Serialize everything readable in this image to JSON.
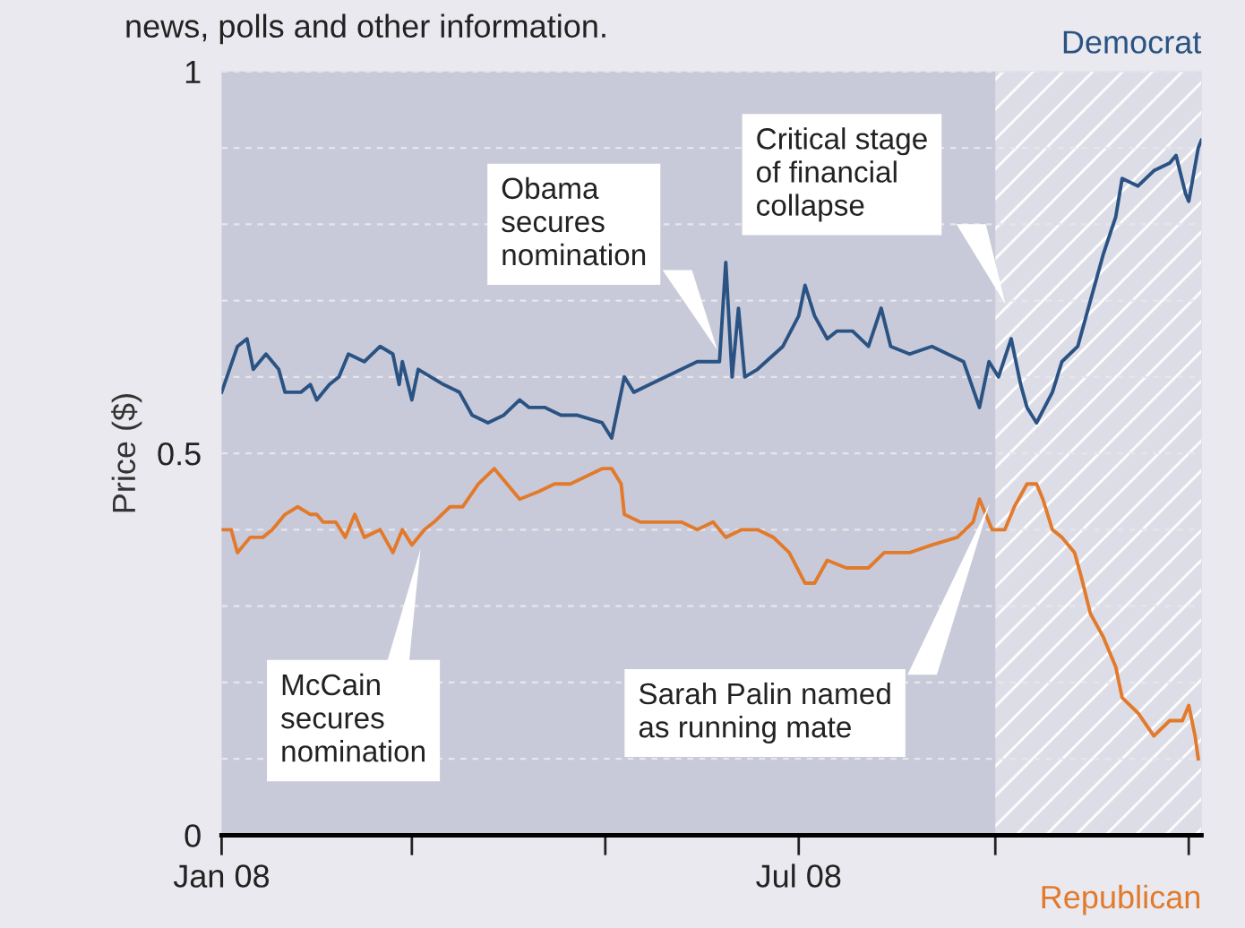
{
  "chart_data": {
    "type": "line",
    "subtitle": "news, polls and other information.",
    "ylabel": "Price ($)",
    "xlim": [
      "2008-01-01",
      "2008-11-05"
    ],
    "xticks": [
      {
        "value": "2008-01-01",
        "label": "Jan 08"
      },
      {
        "value": "2008-03-01",
        "label": null
      },
      {
        "value": "2008-05-01",
        "label": null
      },
      {
        "value": "2008-07-01",
        "label": "Jul 08"
      },
      {
        "value": "2008-09-01",
        "label": null
      },
      {
        "value": "2008-11-01",
        "label": null
      }
    ],
    "ylim": [
      0,
      1
    ],
    "yticks": [
      0,
      {
        "value": 0.1,
        "label": null
      },
      {
        "value": 0.2,
        "label": null
      },
      {
        "value": 0.3,
        "label": null
      },
      {
        "value": 0.4,
        "label": null
      },
      0.5,
      {
        "value": 0.6,
        "label": null
      },
      {
        "value": 0.7,
        "label": null
      },
      {
        "value": 0.8,
        "label": null
      },
      {
        "value": 0.9,
        "label": null
      },
      1
    ],
    "grid": "y",
    "legend": false,
    "line_style": "solid",
    "bands": [
      {
        "axis": "x",
        "from": "2008-09-01",
        "to": "2008-11-05",
        "color": "#dcdde6"
      }
    ],
    "annotations": [
      "Obama\nsecures\nnomination",
      "Critical stage\nof financial\ncollapse",
      "McCain\nsecures\nnomination",
      "Sarah Palin named\nas running mate"
    ],
    "series": [
      {
        "name": "Democrat",
        "color": "#2a5383",
        "x": [
          "2008-01-01",
          "2008-01-06",
          "2008-01-09",
          "2008-01-11",
          "2008-01-15",
          "2008-01-19",
          "2008-01-21",
          "2008-01-26",
          "2008-01-29",
          "2008-01-31",
          "2008-02-04",
          "2008-02-07",
          "2008-02-10",
          "2008-02-15",
          "2008-02-20",
          "2008-02-24",
          "2008-02-26",
          "2008-02-27",
          "2008-03-01",
          "2008-03-03",
          "2008-03-07",
          "2008-03-11",
          "2008-03-16",
          "2008-03-20",
          "2008-03-25",
          "2008-03-30",
          "2008-04-04",
          "2008-04-07",
          "2008-04-12",
          "2008-04-17",
          "2008-04-22",
          "2008-04-30",
          "2008-05-03",
          "2008-05-07",
          "2008-05-10",
          "2008-05-15",
          "2008-05-20",
          "2008-05-25",
          "2008-05-30",
          "2008-06-04",
          "2008-06-06",
          "2008-06-08",
          "2008-06-10",
          "2008-06-12",
          "2008-06-14",
          "2008-06-18",
          "2008-06-26",
          "2008-07-01",
          "2008-07-03",
          "2008-07-06",
          "2008-07-10",
          "2008-07-13",
          "2008-07-18",
          "2008-07-23",
          "2008-07-27",
          "2008-07-30",
          "2008-08-05",
          "2008-08-12",
          "2008-08-17",
          "2008-08-22",
          "2008-08-27",
          "2008-08-30",
          "2008-09-02",
          "2008-09-06",
          "2008-09-09",
          "2008-09-11",
          "2008-09-14",
          "2008-09-19",
          "2008-09-22",
          "2008-09-27",
          "2008-10-01",
          "2008-10-05",
          "2008-10-09",
          "2008-10-11",
          "2008-10-16",
          "2008-10-21",
          "2008-10-26",
          "2008-10-28",
          "2008-10-31",
          "2008-11-01",
          "2008-11-04",
          "2008-11-05"
        ],
        "values": [
          0.58,
          0.64,
          0.65,
          0.61,
          0.63,
          0.61,
          0.58,
          0.58,
          0.59,
          0.57,
          0.59,
          0.6,
          0.63,
          0.62,
          0.64,
          0.63,
          0.59,
          0.62,
          0.57,
          0.61,
          0.6,
          0.59,
          0.58,
          0.55,
          0.54,
          0.55,
          0.57,
          0.56,
          0.56,
          0.55,
          0.55,
          0.54,
          0.52,
          0.6,
          0.58,
          0.59,
          0.6,
          0.61,
          0.62,
          0.62,
          0.62,
          0.75,
          0.6,
          0.69,
          0.6,
          0.61,
          0.64,
          0.68,
          0.72,
          0.68,
          0.65,
          0.66,
          0.66,
          0.64,
          0.69,
          0.64,
          0.63,
          0.64,
          0.63,
          0.62,
          0.56,
          0.62,
          0.6,
          0.65,
          0.59,
          0.56,
          0.54,
          0.58,
          0.62,
          0.64,
          0.7,
          0.76,
          0.81,
          0.86,
          0.85,
          0.87,
          0.88,
          0.89,
          0.84,
          0.83,
          0.9,
          0.91
        ]
      },
      {
        "name": "Republican",
        "color": "#e27a2c",
        "x": [
          "2008-01-01",
          "2008-01-04",
          "2008-01-06",
          "2008-01-10",
          "2008-01-14",
          "2008-01-17",
          "2008-01-21",
          "2008-01-25",
          "2008-01-29",
          "2008-01-31",
          "2008-02-02",
          "2008-02-06",
          "2008-02-09",
          "2008-02-12",
          "2008-02-15",
          "2008-02-20",
          "2008-02-24",
          "2008-02-27",
          "2008-03-01",
          "2008-03-05",
          "2008-03-08",
          "2008-03-13",
          "2008-03-17",
          "2008-03-22",
          "2008-03-27",
          "2008-03-31",
          "2008-04-04",
          "2008-04-10",
          "2008-04-15",
          "2008-04-20",
          "2008-04-25",
          "2008-04-30",
          "2008-05-03",
          "2008-05-06",
          "2008-05-07",
          "2008-05-12",
          "2008-05-17",
          "2008-05-25",
          "2008-05-30",
          "2008-06-04",
          "2008-06-08",
          "2008-06-13",
          "2008-06-18",
          "2008-06-23",
          "2008-06-28",
          "2008-07-03",
          "2008-07-06",
          "2008-07-10",
          "2008-07-16",
          "2008-07-23",
          "2008-07-28",
          "2008-08-05",
          "2008-08-12",
          "2008-08-20",
          "2008-08-25",
          "2008-08-27",
          "2008-08-31",
          "2008-09-04",
          "2008-09-07",
          "2008-09-11",
          "2008-09-14",
          "2008-09-16",
          "2008-09-19",
          "2008-09-22",
          "2008-09-26",
          "2008-09-28",
          "2008-10-01",
          "2008-10-05",
          "2008-10-09",
          "2008-10-11",
          "2008-10-16",
          "2008-10-21",
          "2008-10-26",
          "2008-10-30",
          "2008-11-01",
          "2008-11-03",
          "2008-11-04"
        ],
        "values": [
          0.4,
          0.4,
          0.37,
          0.39,
          0.39,
          0.4,
          0.42,
          0.43,
          0.42,
          0.42,
          0.41,
          0.41,
          0.39,
          0.42,
          0.39,
          0.4,
          0.37,
          0.4,
          0.38,
          0.4,
          0.41,
          0.43,
          0.43,
          0.46,
          0.48,
          0.46,
          0.44,
          0.45,
          0.46,
          0.46,
          0.47,
          0.48,
          0.48,
          0.46,
          0.42,
          0.41,
          0.41,
          0.41,
          0.4,
          0.41,
          0.39,
          0.4,
          0.4,
          0.39,
          0.37,
          0.33,
          0.33,
          0.36,
          0.35,
          0.35,
          0.37,
          0.37,
          0.38,
          0.39,
          0.41,
          0.44,
          0.4,
          0.4,
          0.43,
          0.46,
          0.46,
          0.44,
          0.4,
          0.39,
          0.37,
          0.34,
          0.29,
          0.26,
          0.22,
          0.18,
          0.16,
          0.13,
          0.15,
          0.15,
          0.17,
          0.13,
          0.1
        ]
      }
    ]
  }
}
